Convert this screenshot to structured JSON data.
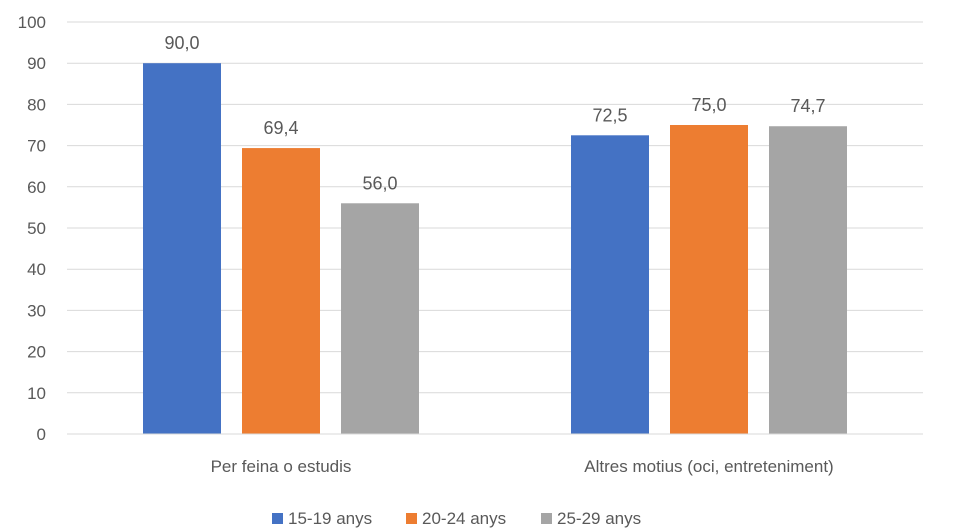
{
  "chart_data": {
    "type": "bar",
    "categories": [
      "Per feina o estudis",
      "Altres motius (oci, entreteniment)"
    ],
    "series": [
      {
        "name": "15-19 anys",
        "color": "#4472C4",
        "values": [
          90.0,
          72.5
        ],
        "labels": [
          "90,0",
          "72,5"
        ]
      },
      {
        "name": "20-24 anys",
        "color": "#ED7D31",
        "values": [
          69.4,
          75.0
        ],
        "labels": [
          "69,4",
          "75,0"
        ]
      },
      {
        "name": "25-29 anys",
        "color": "#A5A5A5",
        "values": [
          56.0,
          74.7
        ],
        "labels": [
          "56,0",
          "74,7"
        ]
      }
    ],
    "ylim": [
      0,
      100
    ],
    "yticks": [
      "0",
      "10",
      "20",
      "30",
      "40",
      "50",
      "60",
      "70",
      "80",
      "90",
      "100"
    ],
    "grid": true,
    "legend": "bottom"
  }
}
